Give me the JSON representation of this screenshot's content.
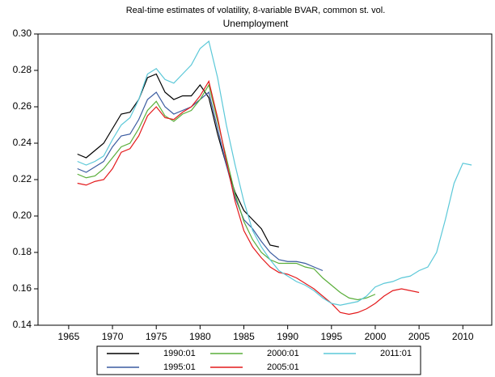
{
  "chart_data": {
    "type": "line",
    "title": "Real-time estimates of volatility, 8-variable BVAR, common st. vol.",
    "subtitle": "Unemployment",
    "x": [
      1966,
      1967,
      1968,
      1969,
      1970,
      1971,
      1972,
      1973,
      1974,
      1975,
      1976,
      1977,
      1978,
      1979,
      1980,
      1981,
      1982,
      1983,
      1984,
      1985,
      1986,
      1987,
      1988,
      1989,
      1990,
      1991,
      1992,
      1993,
      1994,
      1995,
      1996,
      1997,
      1998,
      1999,
      2000,
      2001,
      2002,
      2003,
      2004,
      2005,
      2006,
      2007,
      2008,
      2009,
      2010,
      2011
    ],
    "series": [
      {
        "name": "1990:01",
        "color": "#000000",
        "values": [
          0.234,
          0.232,
          0.236,
          0.24,
          0.248,
          0.256,
          0.257,
          0.264,
          0.276,
          0.278,
          0.268,
          0.264,
          0.266,
          0.266,
          0.272,
          0.265,
          0.245,
          0.228,
          0.213,
          0.203,
          0.198,
          0.193,
          0.184,
          0.183,
          null,
          null,
          null,
          null,
          null,
          null,
          null,
          null,
          null,
          null,
          null,
          null,
          null,
          null,
          null,
          null,
          null,
          null,
          null,
          null,
          null,
          null
        ]
      },
      {
        "name": "1995:01",
        "color": "#3a5ba0",
        "values": [
          0.226,
          0.224,
          0.227,
          0.23,
          0.238,
          0.244,
          0.245,
          0.253,
          0.264,
          0.268,
          0.26,
          0.256,
          0.258,
          0.26,
          0.264,
          0.268,
          0.248,
          0.228,
          0.21,
          0.198,
          0.193,
          0.186,
          0.18,
          0.176,
          0.175,
          0.175,
          0.174,
          0.172,
          0.17,
          null,
          null,
          null,
          null,
          null,
          null,
          null,
          null,
          null,
          null,
          null,
          null,
          null,
          null,
          null,
          null,
          null
        ]
      },
      {
        "name": "2000:01",
        "color": "#5aae3a",
        "values": [
          0.223,
          0.221,
          0.222,
          0.226,
          0.232,
          0.238,
          0.24,
          0.248,
          0.258,
          0.263,
          0.255,
          0.252,
          0.256,
          0.258,
          0.264,
          0.272,
          0.252,
          0.232,
          0.212,
          0.197,
          0.187,
          0.18,
          0.176,
          0.174,
          0.174,
          0.174,
          0.172,
          0.171,
          0.166,
          0.162,
          0.158,
          0.155,
          0.154,
          0.155,
          0.157,
          null,
          null,
          null,
          null,
          null,
          null,
          null,
          null,
          null,
          null,
          null
        ]
      },
      {
        "name": "2005:01",
        "color": "#e41a1c",
        "values": [
          0.218,
          0.217,
          0.219,
          0.22,
          0.226,
          0.235,
          0.237,
          0.244,
          0.255,
          0.26,
          0.254,
          0.253,
          0.257,
          0.26,
          0.266,
          0.274,
          0.254,
          0.23,
          0.208,
          0.192,
          0.183,
          0.177,
          0.172,
          0.169,
          0.168,
          0.166,
          0.163,
          0.16,
          0.156,
          0.152,
          0.147,
          0.146,
          0.147,
          0.149,
          0.152,
          0.156,
          0.159,
          0.16,
          0.159,
          0.158,
          null,
          null,
          null,
          null,
          null,
          null
        ]
      },
      {
        "name": "2011:01",
        "color": "#5bc8d8",
        "values": [
          0.23,
          0.228,
          0.23,
          0.233,
          0.242,
          0.25,
          0.254,
          0.264,
          0.278,
          0.281,
          0.275,
          0.273,
          0.278,
          0.283,
          0.292,
          0.296,
          0.276,
          0.25,
          0.228,
          0.208,
          0.192,
          0.183,
          0.176,
          0.17,
          0.167,
          0.164,
          0.162,
          0.159,
          0.155,
          0.152,
          0.151,
          0.152,
          0.153,
          0.156,
          0.161,
          0.163,
          0.164,
          0.166,
          0.167,
          0.17,
          0.172,
          0.18,
          0.198,
          0.218,
          0.229,
          0.228
        ]
      }
    ],
    "xlim": [
      1961.5,
      2013.3
    ],
    "xticks": [
      1965,
      1970,
      1975,
      1980,
      1985,
      1990,
      1995,
      2000,
      2005,
      2010
    ],
    "ylim": [
      0.14,
      0.3
    ],
    "yticks": [
      0.14,
      0.16,
      0.18,
      {
        "value": 0.2,
        "label": "0.20"
      },
      0.22,
      0.24,
      0.26,
      0.28,
      {
        "value": 0.3,
        "label": "0.30"
      }
    ],
    "grid": false
  }
}
